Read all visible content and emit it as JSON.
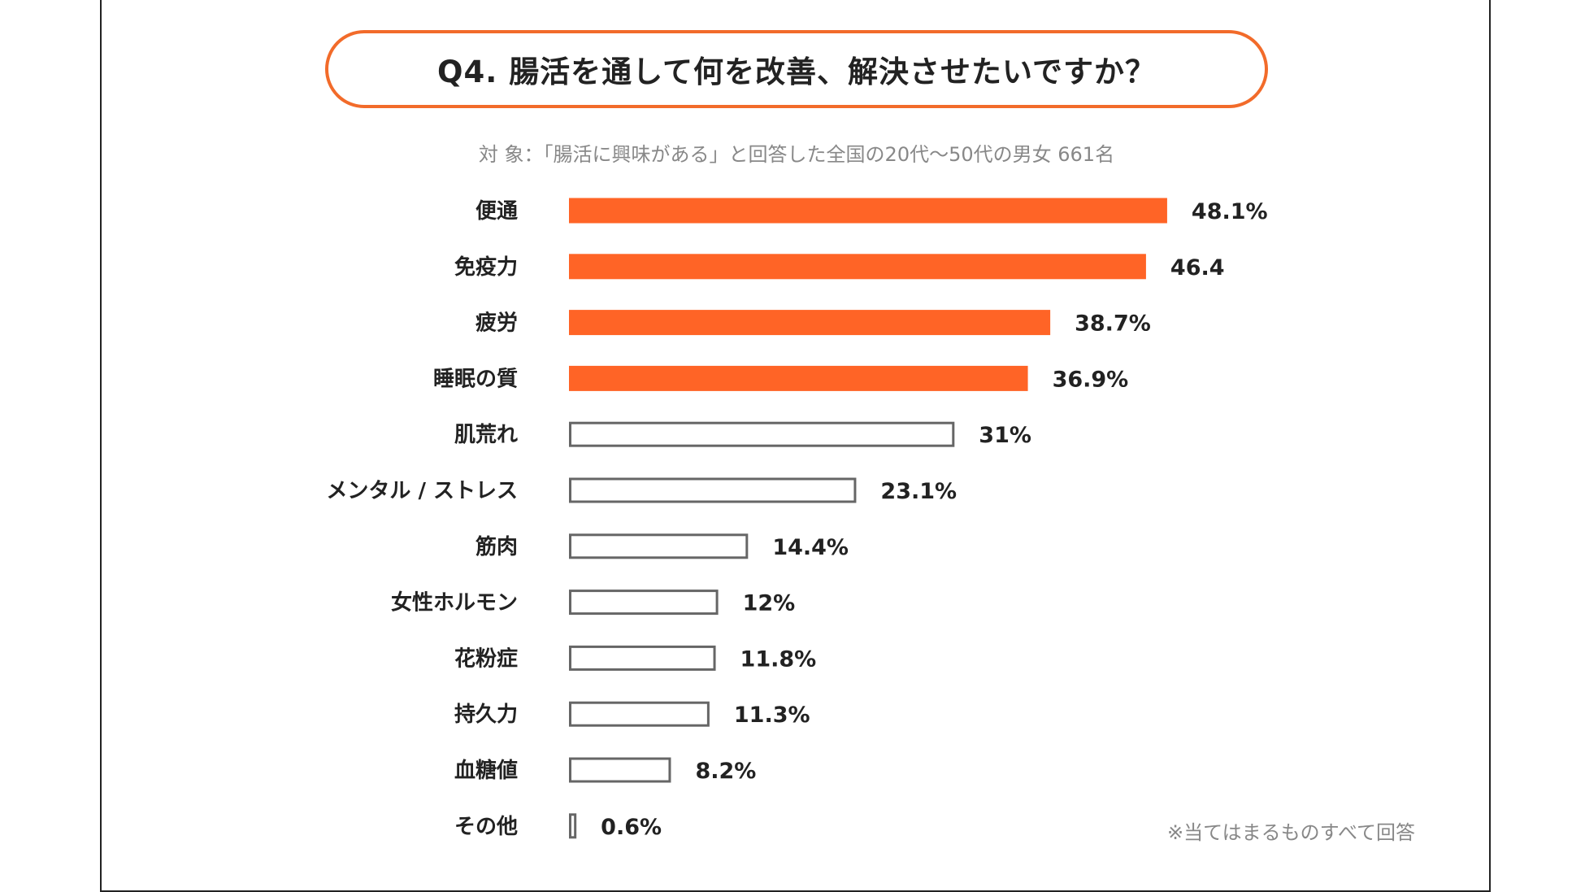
{
  "chart_data": {
    "type": "bar",
    "orientation": "horizontal",
    "title": "Q4. 腸活を通して何を改善、解決させたいですか？",
    "subtitle": "対 象：「腸活に興味がある」と回答した全国の20代〜50代の男女 661名",
    "footnote": "※当てはまるものすべて回答",
    "categories": [
      "便通",
      "免疫力",
      "疲労",
      "睡眠の質",
      "肌荒れ",
      "メンタル / ストレス",
      "筋肉",
      "女性ホルモン",
      "花粉症",
      "持久力",
      "血糖値",
      "その他"
    ],
    "values": [
      48.1,
      46.4,
      38.7,
      36.9,
      31,
      23.1,
      14.4,
      12,
      11.8,
      11.3,
      8.2,
      0.6
    ],
    "value_labels": [
      "48.1%",
      "46.4",
      "38.7%",
      "36.9%",
      "31%",
      "23.1%",
      "14.4%",
      "12%",
      "11.8%",
      "11.3%",
      "8.2%",
      "0.6%"
    ],
    "highlighted": [
      true,
      true,
      true,
      true,
      false,
      false,
      false,
      false,
      false,
      false,
      false,
      false
    ],
    "xlim": [
      0,
      50
    ],
    "colors": {
      "highlight": "#ff6426",
      "outline": "#666666",
      "title_border": "#f26b2a"
    }
  }
}
